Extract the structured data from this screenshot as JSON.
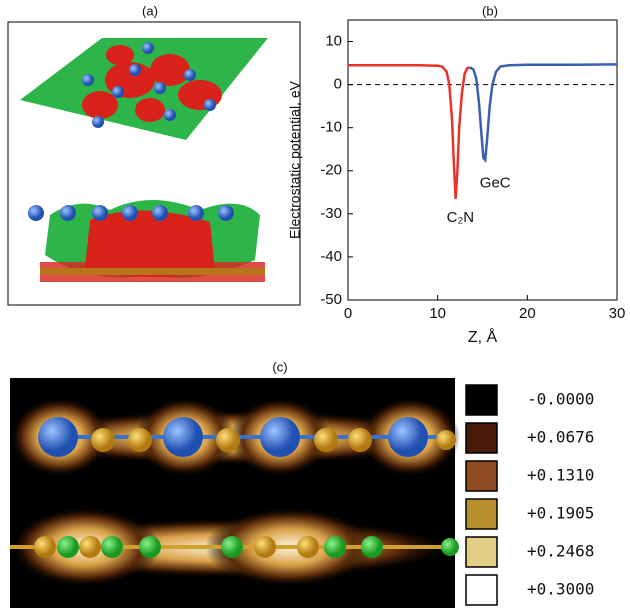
{
  "panel_labels": [
    "(a)",
    "(c)"
  ],
  "chart_data": [
    {
      "type": "line",
      "title": "(b)",
      "x_label": "Z, Å",
      "y_label": "Electrostatic potential, eV",
      "xlim": [
        0,
        30
      ],
      "ylim": [
        -50,
        15
      ],
      "xticks": [
        0,
        10,
        20,
        30
      ],
      "yticks": [
        -50,
        -40,
        -30,
        -20,
        -10,
        0,
        10
      ],
      "reference_line": {
        "y": 0,
        "color": "#000000"
      },
      "series": [
        {
          "color": "#e8332a",
          "x": [
            0,
            2,
            4,
            6,
            8,
            10,
            10.5,
            11,
            11.3,
            11.6,
            11.8,
            12,
            12.2,
            12.4,
            12.7,
            13,
            13.3,
            13.6
          ],
          "values": [
            4.5,
            4.5,
            4.5,
            4.5,
            4.5,
            4.4,
            4.2,
            3,
            0,
            -8,
            -18,
            -26.5,
            -20,
            -10,
            -2,
            2.5,
            3.8,
            4
          ]
        },
        {
          "color": "#3a5fb0",
          "x": [
            13.6,
            14,
            14.3,
            14.6,
            14.9,
            15.1,
            15.3,
            15.5,
            15.8,
            16.1,
            16.5,
            17,
            18,
            20,
            25,
            30
          ],
          "values": [
            4,
            3.5,
            1.5,
            -4,
            -12,
            -17,
            -17.5,
            -13,
            -5,
            0,
            3,
            4.2,
            4.5,
            4.6,
            4.6,
            4.7
          ]
        }
      ],
      "annotations": [
        {
          "text": "C₂N",
          "x": 11,
          "y": -31
        },
        {
          "text": "GeC",
          "x": 14.7,
          "y": -23
        }
      ]
    },
    {
      "type": "colorbar",
      "labels": [
        {
          "value": 0,
          "label": "-0.0000"
        },
        {
          "value": 0.0676,
          "label": "+0.0676"
        },
        {
          "value": 0.131,
          "label": "+0.1310"
        },
        {
          "value": 0.1905,
          "label": "+0.1905"
        },
        {
          "value": 0.2468,
          "label": "+0.2468"
        },
        {
          "value": 0.3,
          "label": "+0.3000"
        }
      ],
      "colors": [
        "#000000",
        "#4a1a08",
        "#8f4a22",
        "#b8902e",
        "#e2cc86",
        "#ffffff"
      ]
    }
  ]
}
